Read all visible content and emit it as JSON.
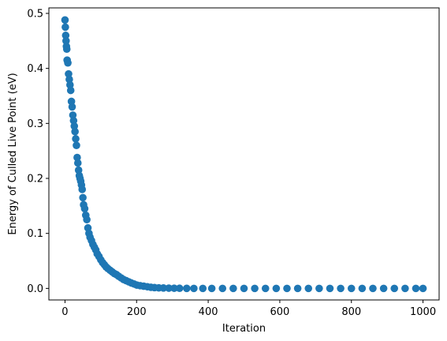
{
  "chart_data": {
    "type": "scatter",
    "title": "",
    "xlabel": "Iteration",
    "ylabel": "Energy of Culled Live Point (eV)",
    "xlim": [
      -45,
      1045
    ],
    "ylim": [
      -0.021,
      0.51
    ],
    "xticks": [
      0,
      200,
      400,
      600,
      800,
      1000
    ],
    "xtick_labels": [
      "0",
      "200",
      "400",
      "600",
      "800",
      "1000"
    ],
    "yticks": [
      0.0,
      0.1,
      0.2,
      0.3,
      0.4,
      0.5
    ],
    "ytick_labels": [
      "0.0",
      "0.1",
      "0.2",
      "0.3",
      "0.4",
      "0.5"
    ],
    "grid": false,
    "marker_color": "#1f77b4",
    "series": [
      {
        "x": [
          0,
          1,
          2,
          3,
          4,
          5,
          6,
          8,
          10,
          12,
          14,
          16,
          18,
          20,
          22,
          24,
          26,
          28,
          30,
          32,
          34,
          36,
          38,
          40,
          42,
          44,
          46,
          48,
          50,
          52,
          55,
          58,
          61,
          64,
          67,
          70,
          74,
          78,
          82,
          86,
          90,
          95,
          100,
          105,
          110,
          115,
          120,
          126,
          132,
          138,
          144,
          150,
          157,
          164,
          171,
          178,
          185,
          193,
          201,
          210,
          220,
          230,
          240,
          250,
          262,
          275,
          290,
          305,
          320,
          340,
          360,
          385,
          410,
          440,
          470,
          500,
          530,
          560,
          590,
          620,
          650,
          680,
          710,
          740,
          770,
          800,
          830,
          860,
          890,
          920,
          950,
          980,
          1000
        ],
        "y": [
          0.488,
          0.475,
          0.46,
          0.45,
          0.44,
          0.435,
          0.415,
          0.41,
          0.39,
          0.38,
          0.37,
          0.36,
          0.34,
          0.33,
          0.315,
          0.305,
          0.295,
          0.285,
          0.272,
          0.26,
          0.238,
          0.228,
          0.215,
          0.205,
          0.2,
          0.195,
          0.188,
          0.18,
          0.165,
          0.152,
          0.145,
          0.133,
          0.125,
          0.11,
          0.1,
          0.093,
          0.087,
          0.08,
          0.075,
          0.07,
          0.063,
          0.058,
          0.052,
          0.047,
          0.043,
          0.039,
          0.036,
          0.033,
          0.03,
          0.027,
          0.025,
          0.022,
          0.019,
          0.016,
          0.014,
          0.012,
          0.01,
          0.008,
          0.006,
          0.005,
          0.004,
          0.003,
          0.002,
          0.0015,
          0.001,
          0.0008,
          0.0005,
          0.0003,
          0.0002,
          0.0001,
          0.0,
          0.0,
          0.0,
          0.0,
          0.0,
          0.0,
          0.0,
          0.0,
          0.0,
          0.0,
          0.0,
          0.0,
          0.0,
          0.0,
          0.0,
          0.0,
          0.0,
          0.0,
          0.0,
          0.0,
          0.0,
          0.0,
          0.0
        ]
      }
    ]
  }
}
